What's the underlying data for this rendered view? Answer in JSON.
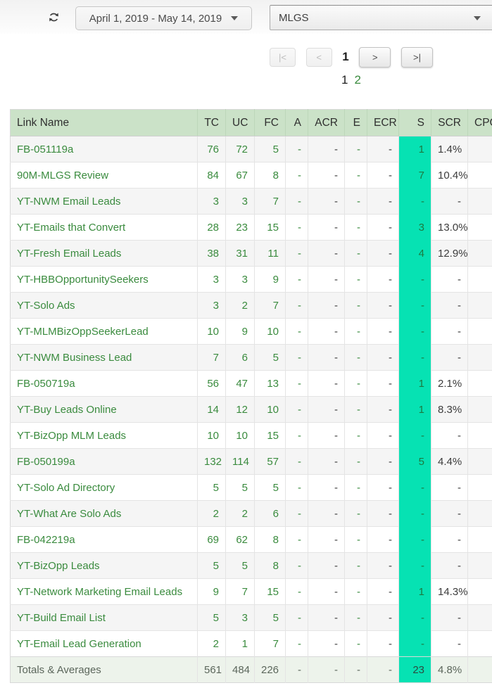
{
  "toolbar": {
    "date_range": "April 1, 2019 - May 14, 2019",
    "campaign_selected": "MLGS"
  },
  "pagination": {
    "first_label": "|<",
    "prev_label": "<",
    "current_page": "1",
    "next_label": ">",
    "last_label": ">|",
    "page_1": "1",
    "page_2": "2"
  },
  "table": {
    "columns": [
      "Link Name",
      "TC",
      "UC",
      "FC",
      "A",
      "ACR",
      "E",
      "ECR",
      "S",
      "SCR",
      "CPC"
    ],
    "rows": [
      {
        "name": "FB-051119a",
        "values": [
          "76",
          "72",
          "5",
          "-",
          "-",
          "-",
          "-",
          "1",
          "1.4%",
          ""
        ]
      },
      {
        "name": "90M-MLGS Review",
        "values": [
          "84",
          "67",
          "8",
          "-",
          "-",
          "-",
          "-",
          "7",
          "10.4%",
          ""
        ]
      },
      {
        "name": "YT-NWM Email Leads",
        "values": [
          "3",
          "3",
          "7",
          "-",
          "-",
          "-",
          "-",
          "-",
          "-",
          ""
        ]
      },
      {
        "name": "YT-Emails that Convert",
        "values": [
          "28",
          "23",
          "15",
          "-",
          "-",
          "-",
          "-",
          "3",
          "13.0%",
          ""
        ]
      },
      {
        "name": "YT-Fresh Email Leads",
        "values": [
          "38",
          "31",
          "11",
          "-",
          "-",
          "-",
          "-",
          "4",
          "12.9%",
          ""
        ]
      },
      {
        "name": "YT-HBBOpportunitySeekers",
        "values": [
          "3",
          "3",
          "9",
          "-",
          "-",
          "-",
          "-",
          "-",
          "-",
          ""
        ]
      },
      {
        "name": "YT-Solo Ads",
        "values": [
          "3",
          "2",
          "7",
          "-",
          "-",
          "-",
          "-",
          "-",
          "-",
          ""
        ]
      },
      {
        "name": "YT-MLMBizOppSeekerLead",
        "values": [
          "10",
          "9",
          "10",
          "-",
          "-",
          "-",
          "-",
          "-",
          "-",
          ""
        ]
      },
      {
        "name": "YT-NWM Business Lead",
        "values": [
          "7",
          "6",
          "5",
          "-",
          "-",
          "-",
          "-",
          "-",
          "-",
          ""
        ]
      },
      {
        "name": "FB-050719a",
        "values": [
          "56",
          "47",
          "13",
          "-",
          "-",
          "-",
          "-",
          "1",
          "2.1%",
          ""
        ]
      },
      {
        "name": "YT-Buy Leads Online",
        "values": [
          "14",
          "12",
          "10",
          "-",
          "-",
          "-",
          "-",
          "1",
          "8.3%",
          ""
        ]
      },
      {
        "name": "YT-BizOpp MLM Leads",
        "values": [
          "10",
          "10",
          "15",
          "-",
          "-",
          "-",
          "-",
          "-",
          "-",
          ""
        ]
      },
      {
        "name": "FB-050199a",
        "values": [
          "132",
          "114",
          "57",
          "-",
          "-",
          "-",
          "-",
          "5",
          "4.4%",
          ""
        ]
      },
      {
        "name": "YT-Solo Ad Directory",
        "values": [
          "5",
          "5",
          "5",
          "-",
          "-",
          "-",
          "-",
          "-",
          "-",
          ""
        ]
      },
      {
        "name": "YT-What Are Solo Ads",
        "values": [
          "2",
          "2",
          "6",
          "-",
          "-",
          "-",
          "-",
          "-",
          "-",
          ""
        ]
      },
      {
        "name": "FB-042219a",
        "values": [
          "69",
          "62",
          "8",
          "-",
          "-",
          "-",
          "-",
          "-",
          "-",
          ""
        ]
      },
      {
        "name": "YT-BizOpp Leads",
        "values": [
          "5",
          "5",
          "8",
          "-",
          "-",
          "-",
          "-",
          "-",
          "-",
          ""
        ]
      },
      {
        "name": "YT-Network Marketing Email Leads",
        "values": [
          "9",
          "7",
          "15",
          "-",
          "-",
          "-",
          "-",
          "1",
          "14.3%",
          ""
        ]
      },
      {
        "name": "YT-Build Email List",
        "values": [
          "5",
          "3",
          "5",
          "-",
          "-",
          "-",
          "-",
          "-",
          "-",
          ""
        ]
      },
      {
        "name": "YT-Email Lead Generation",
        "values": [
          "2",
          "1",
          "7",
          "-",
          "-",
          "-",
          "-",
          "-",
          "-",
          ""
        ]
      }
    ],
    "totals": {
      "name": "Totals & Averages",
      "values": [
        "561",
        "484",
        "226",
        "-",
        "-",
        "-",
        "-",
        "23",
        "4.8%",
        ""
      ]
    }
  },
  "colors": {
    "highlight_cyan": "#06e2b3",
    "header_green": "#cbe2c8",
    "link_green": "#3a8b3e"
  }
}
